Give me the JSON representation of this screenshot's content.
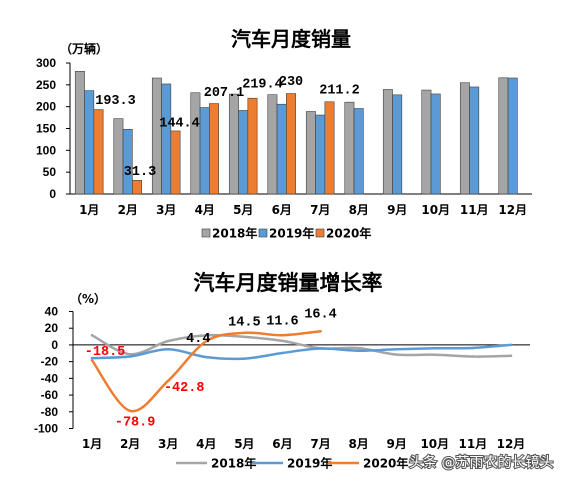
{
  "watermark": {
    "text": "头条 @苏雨农的长镜头"
  },
  "chart_data": [
    {
      "type": "bar",
      "title": "汽车月度销量",
      "ylabel": "（万辆）",
      "categories": [
        "1月",
        "2月",
        "3月",
        "4月",
        "5月",
        "6月",
        "7月",
        "8月",
        "9月",
        "10月",
        "11月",
        "12月"
      ],
      "ylim": [
        0,
        300
      ],
      "yticks": [
        300,
        250,
        200,
        150,
        100,
        50,
        0
      ],
      "grid": false,
      "legend": "bottom",
      "series": [
        {
          "name": "2018年",
          "color": "#A5A5A5",
          "show_labels": false,
          "values": [
            281.0,
            172.5,
            265.6,
            231.9,
            228.8,
            227.4,
            188.9,
            210.3,
            239.4,
            238.0,
            254.8,
            266.1
          ]
        },
        {
          "name": "2019年",
          "color": "#5B9BD5",
          "show_labels": false,
          "values": [
            236.7,
            148.2,
            252.0,
            198.0,
            191.3,
            205.6,
            180.8,
            195.8,
            227.1,
            229.1,
            245.1,
            265.6
          ]
        },
        {
          "name": "2020年",
          "color": "#ED7D31",
          "show_labels": true,
          "values": [
            193.3,
            31.3,
            144.4,
            207.1,
            219.4,
            230,
            211.2,
            null,
            null,
            null,
            null,
            null
          ]
        }
      ]
    },
    {
      "type": "line",
      "title": "汽车月度销量增长率",
      "ylabel": "（%）",
      "categories": [
        "1月",
        "2月",
        "3月",
        "4月",
        "5月",
        "6月",
        "7月",
        "8月",
        "9月",
        "10月",
        "11月",
        "12月"
      ],
      "ylim": [
        -100,
        40
      ],
      "yticks": [
        40,
        20,
        0,
        -20,
        -40,
        -60,
        -80,
        -100
      ],
      "grid": false,
      "legend": "bottom",
      "label_colors": {
        "negative": "#FF0000",
        "positive": "#000000"
      },
      "series": [
        {
          "name": "2018年",
          "color": "#A5A5A5",
          "show_labels": false,
          "values": [
            11.6,
            -11.1,
            4.7,
            11.5,
            9.6,
            4.8,
            -4.0,
            -3.8,
            -11.6,
            -11.7,
            -13.9,
            -13.0
          ]
        },
        {
          "name": "2019年",
          "color": "#5B9BD5",
          "show_labels": false,
          "values": [
            -15.8,
            -13.8,
            -5.2,
            -14.6,
            -16.4,
            -9.6,
            -4.3,
            -6.9,
            -5.2,
            -4.0,
            -3.6,
            0.1
          ]
        },
        {
          "name": "2020年",
          "color": "#ED7D31",
          "show_labels": true,
          "values": [
            -18.5,
            -78.9,
            -42.8,
            4.4,
            14.5,
            11.6,
            16.4,
            null,
            null,
            null,
            null,
            null
          ]
        }
      ]
    }
  ]
}
